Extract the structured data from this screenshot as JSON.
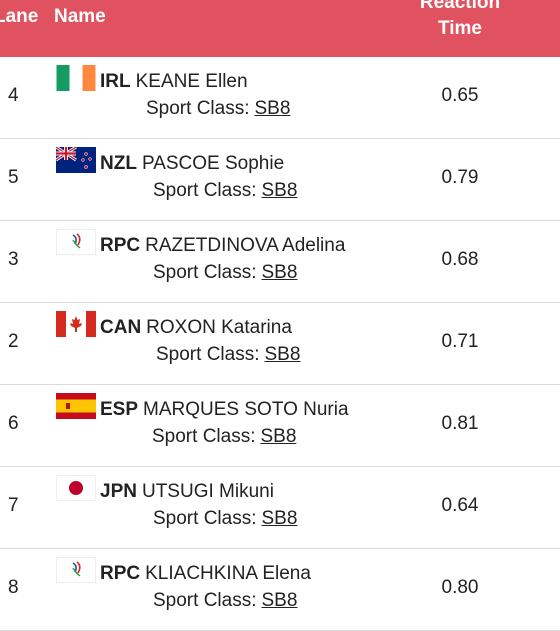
{
  "header": {
    "lane": "Lane",
    "name": "Name",
    "reaction_line1": "Reaction",
    "reaction_line2": "Time"
  },
  "sport_class_label": "Sport Class:",
  "rows": [
    {
      "lane": "4",
      "noc": "IRL",
      "name": "KEANE Ellen",
      "sport_class": "SB8",
      "reaction": "0.65",
      "flag": "ireland-flag-icon"
    },
    {
      "lane": "5",
      "noc": "NZL",
      "name": "PASCOE Sophie",
      "sport_class": "SB8",
      "reaction": "0.79",
      "flag": "new-zealand-flag-icon"
    },
    {
      "lane": "3",
      "noc": "RPC",
      "name": "RAZETDINOVA Adelina",
      "sport_class": "SB8",
      "reaction": "0.68",
      "flag": "rpc-flag-icon"
    },
    {
      "lane": "2",
      "noc": "CAN",
      "name": "ROXON Katarina",
      "sport_class": "SB8",
      "reaction": "0.71",
      "flag": "canada-flag-icon"
    },
    {
      "lane": "6",
      "noc": "ESP",
      "name": "MARQUES SOTO Nuria",
      "sport_class": "SB8",
      "reaction": "0.81",
      "flag": "spain-flag-icon"
    },
    {
      "lane": "7",
      "noc": "JPN",
      "name": "UTSUGI Mikuni",
      "sport_class": "SB8",
      "reaction": "0.64",
      "flag": "japan-flag-icon"
    },
    {
      "lane": "8",
      "noc": "RPC",
      "name": "KLIACHKINA Elena",
      "sport_class": "SB8",
      "reaction": "0.80",
      "flag": "rpc-flag-icon"
    }
  ],
  "colors": {
    "header_bg": "#e0525f",
    "header_text": "#ffffff"
  }
}
